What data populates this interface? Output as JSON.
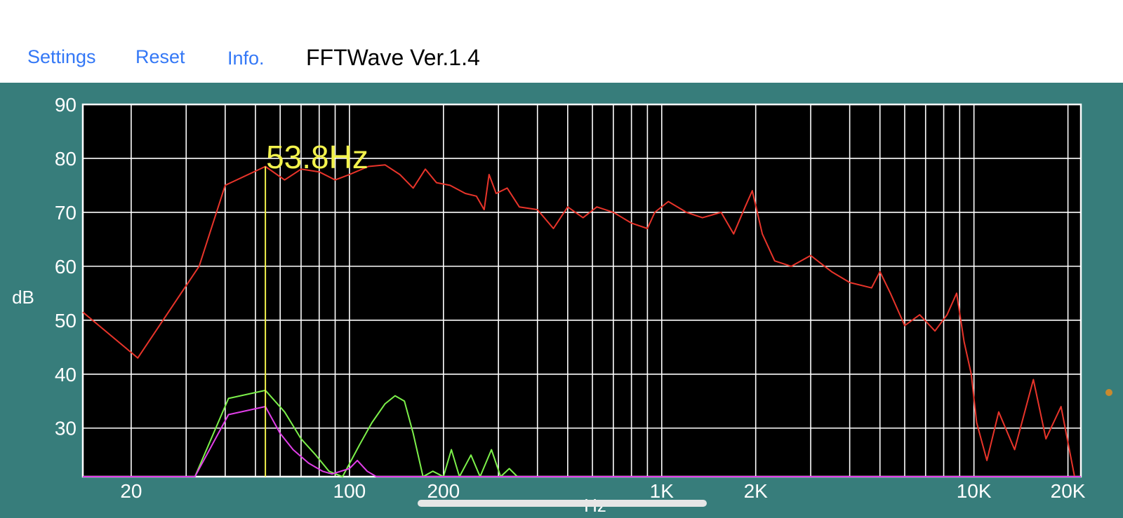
{
  "toolbar": {
    "settings_label": "Settings",
    "reset_label": "Reset",
    "info_label": "Info.",
    "app_title": "FFTWave Ver.1.4"
  },
  "colors": {
    "panel_bg": "#377d7b",
    "plot_bg": "#000000",
    "grid": "#ffffff",
    "spectrum": "#e8342a",
    "peak_marker": "#f2f24c",
    "trace_green": "#7cf04a",
    "trace_magenta": "#e13fe9",
    "link_blue": "#3478f6"
  },
  "chart_data": {
    "type": "line",
    "title": "",
    "xlabel": "Hz",
    "ylabel": "dB",
    "x_scale": "log",
    "xlim": [
      14,
      22000
    ],
    "ylim": [
      21,
      90
    ],
    "grid": true,
    "x_tick_labels": [
      {
        "label": "20",
        "value": 20
      },
      {
        "label": "100",
        "value": 100
      },
      {
        "label": "200",
        "value": 200
      },
      {
        "label": "1K",
        "value": 1000
      },
      {
        "label": "2K",
        "value": 2000
      },
      {
        "label": "10K",
        "value": 10000
      },
      {
        "label": "20K",
        "value": 20000
      }
    ],
    "y_tick_labels": [
      {
        "label": "90",
        "value": 90
      },
      {
        "label": "80",
        "value": 80
      },
      {
        "label": "70",
        "value": 70
      },
      {
        "label": "60",
        "value": 60
      },
      {
        "label": "50",
        "value": 50
      },
      {
        "label": "40",
        "value": 40
      },
      {
        "label": "30",
        "value": 30
      }
    ],
    "peak": {
      "frequency": 53.8,
      "label": "53.8Hz",
      "db": 78.5
    },
    "series": [
      {
        "color": "#e8342a",
        "points": [
          [
            14,
            51.5
          ],
          [
            21,
            43
          ],
          [
            33,
            60
          ],
          [
            40,
            75
          ],
          [
            53.8,
            78.5
          ],
          [
            62,
            76
          ],
          [
            70,
            78
          ],
          [
            80,
            77.5
          ],
          [
            90,
            76
          ],
          [
            100,
            77
          ],
          [
            115,
            78.5
          ],
          [
            130,
            78.8
          ],
          [
            145,
            77
          ],
          [
            160,
            74.5
          ],
          [
            175,
            78
          ],
          [
            190,
            75.5
          ],
          [
            210,
            75
          ],
          [
            235,
            73.5
          ],
          [
            255,
            73
          ],
          [
            270,
            70.5
          ],
          [
            280,
            77
          ],
          [
            295,
            73.5
          ],
          [
            320,
            74.5
          ],
          [
            350,
            71
          ],
          [
            400,
            70.5
          ],
          [
            450,
            67
          ],
          [
            500,
            71
          ],
          [
            560,
            69
          ],
          [
            620,
            71
          ],
          [
            700,
            70
          ],
          [
            800,
            68
          ],
          [
            900,
            67
          ],
          [
            950,
            70
          ],
          [
            1050,
            72
          ],
          [
            1200,
            70
          ],
          [
            1350,
            69
          ],
          [
            1550,
            70
          ],
          [
            1700,
            66
          ],
          [
            1850,
            71
          ],
          [
            1950,
            74
          ],
          [
            2100,
            66
          ],
          [
            2300,
            61
          ],
          [
            2600,
            60
          ],
          [
            3000,
            62
          ],
          [
            3500,
            59
          ],
          [
            4000,
            57
          ],
          [
            4700,
            56
          ],
          [
            5000,
            59
          ],
          [
            5400,
            55
          ],
          [
            6000,
            49
          ],
          [
            6700,
            51
          ],
          [
            7500,
            48
          ],
          [
            8200,
            51
          ],
          [
            8800,
            55
          ],
          [
            9300,
            46
          ],
          [
            9800,
            40
          ],
          [
            10200,
            31
          ],
          [
            11000,
            24
          ],
          [
            12000,
            33
          ],
          [
            13500,
            26
          ],
          [
            15500,
            39
          ],
          [
            17000,
            28
          ],
          [
            19000,
            34
          ],
          [
            21000,
            21
          ]
        ]
      },
      {
        "color": "#7cf04a",
        "points": [
          [
            14,
            21
          ],
          [
            32,
            21
          ],
          [
            41,
            35.5
          ],
          [
            53.8,
            37
          ],
          [
            62,
            33
          ],
          [
            70,
            28
          ],
          [
            78,
            25
          ],
          [
            86,
            22
          ],
          [
            95,
            21
          ],
          [
            108,
            27
          ],
          [
            118,
            31
          ],
          [
            130,
            34.5
          ],
          [
            140,
            36
          ],
          [
            150,
            35
          ],
          [
            160,
            29
          ],
          [
            172,
            21
          ],
          [
            185,
            22
          ],
          [
            200,
            21
          ],
          [
            212,
            26
          ],
          [
            225,
            21
          ],
          [
            245,
            25
          ],
          [
            262,
            21
          ],
          [
            285,
            26
          ],
          [
            305,
            21
          ],
          [
            325,
            22.5
          ],
          [
            345,
            21
          ],
          [
            22000,
            21
          ]
        ]
      },
      {
        "color": "#e13fe9",
        "points": [
          [
            14,
            21
          ],
          [
            32,
            21
          ],
          [
            41,
            32.5
          ],
          [
            53.8,
            34
          ],
          [
            60,
            29
          ],
          [
            66,
            26
          ],
          [
            74,
            23.5
          ],
          [
            82,
            22
          ],
          [
            88,
            21.5
          ],
          [
            100,
            22.5
          ],
          [
            106,
            24
          ],
          [
            114,
            22
          ],
          [
            122,
            21
          ],
          [
            22000,
            21
          ]
        ]
      }
    ]
  }
}
